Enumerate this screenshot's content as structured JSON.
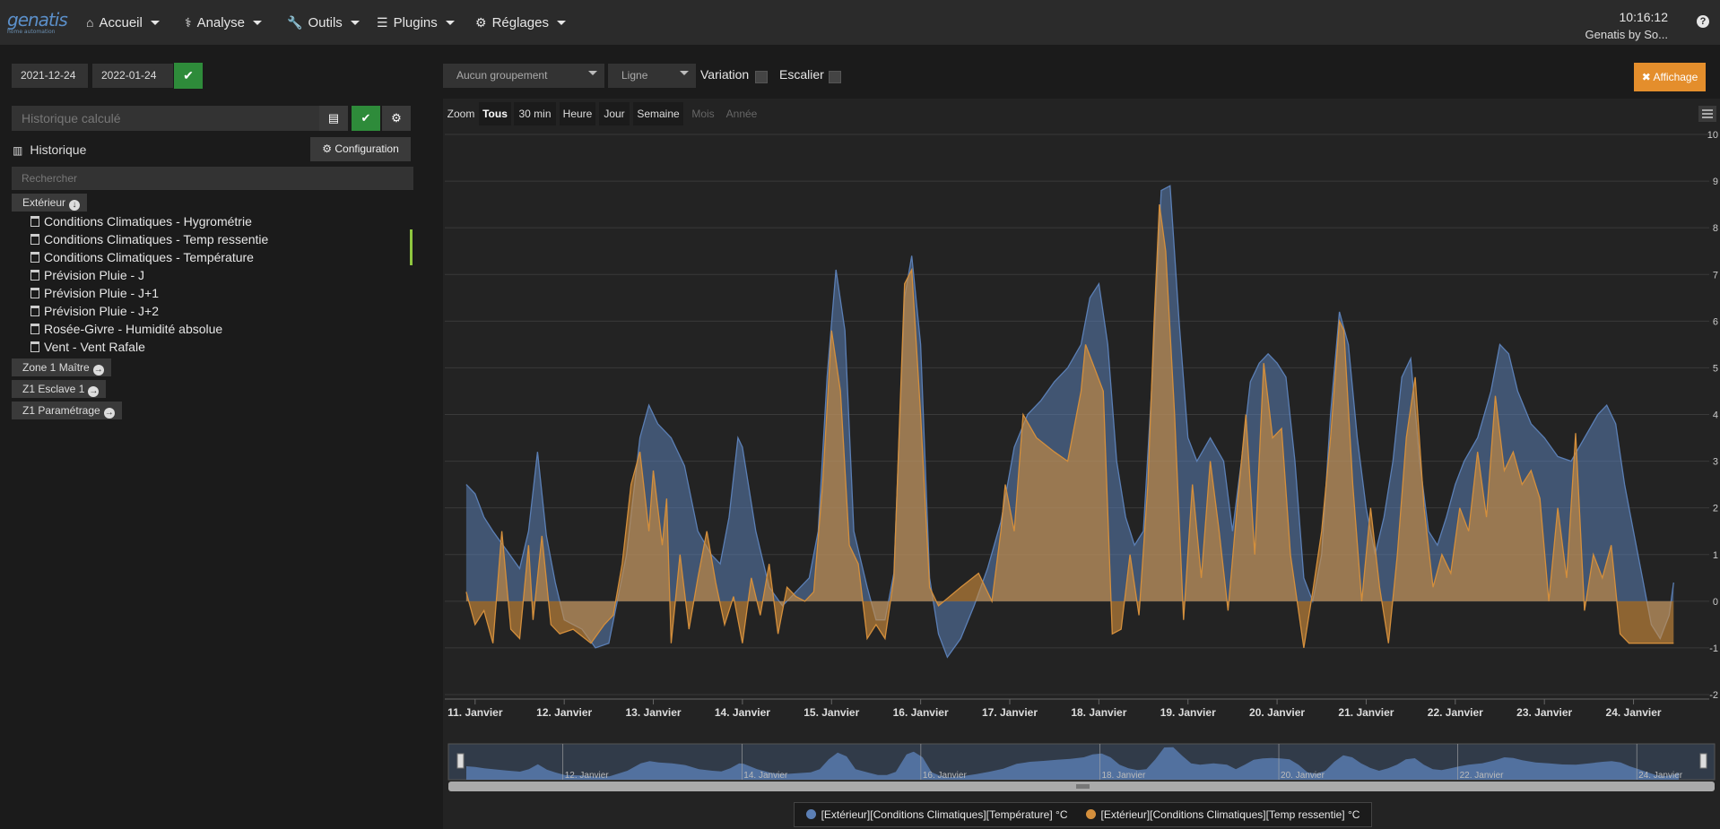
{
  "nav": {
    "logo": "genatis",
    "logo_sub": "home automation",
    "items": [
      {
        "label": "Accueil",
        "icon": "home-icon"
      },
      {
        "label": "Analyse",
        "icon": "stethoscope-icon"
      },
      {
        "label": "Outils",
        "icon": "wrench-icon"
      },
      {
        "label": "Plugins",
        "icon": "list-icon"
      },
      {
        "label": "Réglages",
        "icon": "cog-icon"
      }
    ],
    "time": "10:16:12",
    "user": "Genatis by So..."
  },
  "filters": {
    "date_start": "2021-12-24",
    "date_end": "2022-01-24",
    "calc_placeholder": "Historique calculé",
    "history_title": "Historique",
    "config_label": "Configuration",
    "search_placeholder": "Rechercher"
  },
  "groups": [
    {
      "label": "Extérieur",
      "items": [
        "Conditions Climatiques - Hygrométrie",
        "Conditions Climatiques - Temp ressentie",
        "Conditions Climatiques - Température",
        "Prévision Pluie - J",
        "Prévision Pluie - J+1",
        "Prévision Pluie - J+2",
        "Rosée-Givre - Humidité absolue",
        "Vent - Vent Rafale"
      ]
    },
    {
      "label": "Zone 1 Maître"
    },
    {
      "label": "Z1 Esclave 1"
    },
    {
      "label": "Z1 Paramétrage"
    }
  ],
  "toolbar": {
    "grouping": "Aucun groupement",
    "type": "Ligne",
    "variation_label": "Variation",
    "stair_label": "Escalier",
    "display_label": "Affichage"
  },
  "zoom": {
    "label": "Zoom",
    "buttons": [
      "Tous",
      "30 min",
      "Heure",
      "Jour",
      "Semaine",
      "Mois",
      "Année"
    ],
    "selected": "Tous",
    "disabled": [
      "Mois",
      "Année"
    ]
  },
  "chart_data": {
    "type": "area",
    "x_labels": [
      "11. Janvier",
      "12. Janvier",
      "13. Janvier",
      "14. Janvier",
      "15. Janvier",
      "16. Janvier",
      "17. Janvier",
      "18. Janvier",
      "19. Janvier",
      "20. Janvier",
      "21. Janvier",
      "22. Janvier",
      "23. Janvier",
      "24. Janvier"
    ],
    "x_range": [
      10.7,
      24.85
    ],
    "y_ticks": [
      10,
      9,
      8,
      7,
      6,
      5,
      4,
      3,
      2,
      1,
      0,
      -1,
      -2
    ],
    "ylim": [
      -2,
      10
    ],
    "navigator_labels": [
      "12. Janvier",
      "14. Janvier",
      "16. Janvier",
      "18. Janvier",
      "20. Janvier",
      "22. Janvier",
      "24. Janvier"
    ],
    "series": [
      {
        "name": "[Extérieur][Conditions Climatiques][Température] °C",
        "color": "#5b7fb5",
        "points": [
          [
            10.9,
            2.5
          ],
          [
            11.0,
            2.3
          ],
          [
            11.1,
            1.8
          ],
          [
            11.2,
            1.5
          ],
          [
            11.35,
            1.1
          ],
          [
            11.5,
            0.7
          ],
          [
            11.6,
            1.5
          ],
          [
            11.7,
            3.2
          ],
          [
            11.8,
            1.4
          ],
          [
            11.9,
            0.4
          ],
          [
            12.0,
            -0.4
          ],
          [
            12.2,
            -0.6
          ],
          [
            12.35,
            -1.0
          ],
          [
            12.5,
            -0.9
          ],
          [
            12.7,
            1.0
          ],
          [
            12.85,
            3.5
          ],
          [
            12.95,
            4.2
          ],
          [
            13.05,
            3.8
          ],
          [
            13.2,
            3.5
          ],
          [
            13.35,
            2.9
          ],
          [
            13.5,
            1.5
          ],
          [
            13.65,
            1.0
          ],
          [
            13.75,
            0.8
          ],
          [
            13.85,
            1.8
          ],
          [
            13.95,
            3.5
          ],
          [
            14.0,
            3.3
          ],
          [
            14.15,
            1.5
          ],
          [
            14.3,
            0.3
          ],
          [
            14.45,
            -0.1
          ],
          [
            14.6,
            0.2
          ],
          [
            14.75,
            0.5
          ],
          [
            14.85,
            1.5
          ],
          [
            14.95,
            4.8
          ],
          [
            15.05,
            7.1
          ],
          [
            15.15,
            5.8
          ],
          [
            15.25,
            1.5
          ],
          [
            15.4,
            0.3
          ],
          [
            15.5,
            -0.4
          ],
          [
            15.6,
            -0.4
          ],
          [
            15.7,
            0.6
          ],
          [
            15.82,
            6.5
          ],
          [
            15.9,
            7.4
          ],
          [
            16.0,
            5.5
          ],
          [
            16.1,
            0.5
          ],
          [
            16.2,
            -0.7
          ],
          [
            16.3,
            -1.2
          ],
          [
            16.45,
            -0.8
          ],
          [
            16.6,
            -0.1
          ],
          [
            16.75,
            0.7
          ],
          [
            16.9,
            1.7
          ],
          [
            17.05,
            3.3
          ],
          [
            17.2,
            4.0
          ],
          [
            17.35,
            4.3
          ],
          [
            17.5,
            4.7
          ],
          [
            17.65,
            5.0
          ],
          [
            17.8,
            5.5
          ],
          [
            17.9,
            6.5
          ],
          [
            18.0,
            6.8
          ],
          [
            18.1,
            5.5
          ],
          [
            18.2,
            3.0
          ],
          [
            18.3,
            1.8
          ],
          [
            18.4,
            1.2
          ],
          [
            18.5,
            1.5
          ],
          [
            18.6,
            4.8
          ],
          [
            18.7,
            8.8
          ],
          [
            18.8,
            8.9
          ],
          [
            18.9,
            6.0
          ],
          [
            19.0,
            3.5
          ],
          [
            19.1,
            3.0
          ],
          [
            19.25,
            3.5
          ],
          [
            19.4,
            3.0
          ],
          [
            19.5,
            1.5
          ],
          [
            19.6,
            3.0
          ],
          [
            19.7,
            4.7
          ],
          [
            19.8,
            5.1
          ],
          [
            19.9,
            5.3
          ],
          [
            20.0,
            5.1
          ],
          [
            20.1,
            4.8
          ],
          [
            20.2,
            3.0
          ],
          [
            20.3,
            0.5
          ],
          [
            20.4,
            0.0
          ],
          [
            20.5,
            1.0
          ],
          [
            20.6,
            4.0
          ],
          [
            20.7,
            6.2
          ],
          [
            20.8,
            5.5
          ],
          [
            20.9,
            3.5
          ],
          [
            21.0,
            2.0
          ],
          [
            21.1,
            1.0
          ],
          [
            21.2,
            1.8
          ],
          [
            21.3,
            3.0
          ],
          [
            21.4,
            4.8
          ],
          [
            21.5,
            5.2
          ],
          [
            21.6,
            3.0
          ],
          [
            21.7,
            1.5
          ],
          [
            21.8,
            1.2
          ],
          [
            21.9,
            1.8
          ],
          [
            22.0,
            2.5
          ],
          [
            22.1,
            3.0
          ],
          [
            22.25,
            3.5
          ],
          [
            22.4,
            4.5
          ],
          [
            22.5,
            5.5
          ],
          [
            22.6,
            5.3
          ],
          [
            22.7,
            4.5
          ],
          [
            22.85,
            3.8
          ],
          [
            23.0,
            3.5
          ],
          [
            23.15,
            3.1
          ],
          [
            23.3,
            3.0
          ],
          [
            23.45,
            3.5
          ],
          [
            23.6,
            4.0
          ],
          [
            23.7,
            4.2
          ],
          [
            23.8,
            3.8
          ],
          [
            23.9,
            2.5
          ],
          [
            24.0,
            1.5
          ],
          [
            24.1,
            0.5
          ],
          [
            24.2,
            -0.5
          ],
          [
            24.3,
            -0.8
          ],
          [
            24.4,
            -0.3
          ],
          [
            24.45,
            0.4
          ]
        ]
      },
      {
        "name": "[Extérieur][Conditions Climatiques][Temp ressentie] °C",
        "color": "#d48f3c",
        "points": [
          [
            10.9,
            0.2
          ],
          [
            11.0,
            -0.5
          ],
          [
            11.1,
            -0.2
          ],
          [
            11.2,
            -0.9
          ],
          [
            11.3,
            1.5
          ],
          [
            11.4,
            -0.6
          ],
          [
            11.5,
            -0.8
          ],
          [
            11.6,
            1.2
          ],
          [
            11.65,
            -0.4
          ],
          [
            11.75,
            1.4
          ],
          [
            11.85,
            -0.5
          ],
          [
            11.95,
            -0.7
          ],
          [
            12.1,
            -0.6
          ],
          [
            12.3,
            -0.9
          ],
          [
            12.45,
            -0.5
          ],
          [
            12.55,
            -0.3
          ],
          [
            12.65,
            0.8
          ],
          [
            12.75,
            2.5
          ],
          [
            12.85,
            3.2
          ],
          [
            12.95,
            1.5
          ],
          [
            13.0,
            2.8
          ],
          [
            13.1,
            1.2
          ],
          [
            13.15,
            2.2
          ],
          [
            13.2,
            -0.9
          ],
          [
            13.3,
            1.0
          ],
          [
            13.4,
            -0.6
          ],
          [
            13.5,
            0.5
          ],
          [
            13.6,
            1.5
          ],
          [
            13.7,
            0.4
          ],
          [
            13.8,
            -0.5
          ],
          [
            13.9,
            0.1
          ],
          [
            14.0,
            -0.9
          ],
          [
            14.1,
            0.5
          ],
          [
            14.2,
            -0.3
          ],
          [
            14.3,
            0.8
          ],
          [
            14.4,
            -0.7
          ],
          [
            14.5,
            0.3
          ],
          [
            14.6,
            0.1
          ],
          [
            14.7,
            0.0
          ],
          [
            14.8,
            0.2
          ],
          [
            14.9,
            2.5
          ],
          [
            15.0,
            5.8
          ],
          [
            15.1,
            4.5
          ],
          [
            15.2,
            1.2
          ],
          [
            15.3,
            0.8
          ],
          [
            15.4,
            -0.8
          ],
          [
            15.5,
            -0.5
          ],
          [
            15.6,
            -0.8
          ],
          [
            15.7,
            0.5
          ],
          [
            15.82,
            6.8
          ],
          [
            15.9,
            7.1
          ],
          [
            16.0,
            4.0
          ],
          [
            16.1,
            0.3
          ],
          [
            16.2,
            -0.1
          ],
          [
            16.45,
            0.3
          ],
          [
            16.65,
            0.6
          ],
          [
            16.8,
            0.0
          ],
          [
            16.9,
            1.5
          ],
          [
            16.95,
            2.5
          ],
          [
            17.05,
            1.5
          ],
          [
            17.15,
            4.0
          ],
          [
            17.3,
            3.5
          ],
          [
            17.5,
            3.2
          ],
          [
            17.65,
            3.0
          ],
          [
            17.8,
            4.5
          ],
          [
            17.85,
            5.5
          ],
          [
            17.95,
            5.0
          ],
          [
            18.05,
            4.5
          ],
          [
            18.15,
            -0.7
          ],
          [
            18.25,
            -0.6
          ],
          [
            18.35,
            1.0
          ],
          [
            18.45,
            -0.3
          ],
          [
            18.55,
            2.5
          ],
          [
            18.62,
            6.0
          ],
          [
            18.68,
            8.5
          ],
          [
            18.75,
            7.5
          ],
          [
            18.85,
            4.0
          ],
          [
            18.95,
            -0.4
          ],
          [
            19.05,
            2.5
          ],
          [
            19.15,
            0.5
          ],
          [
            19.25,
            3.0
          ],
          [
            19.35,
            1.5
          ],
          [
            19.45,
            -0.2
          ],
          [
            19.55,
            2.0
          ],
          [
            19.65,
            4.0
          ],
          [
            19.75,
            1.0
          ],
          [
            19.85,
            5.1
          ],
          [
            19.95,
            3.5
          ],
          [
            20.05,
            3.7
          ],
          [
            20.15,
            1.0
          ],
          [
            20.3,
            -1.0
          ],
          [
            20.4,
            0.2
          ],
          [
            20.5,
            1.5
          ],
          [
            20.6,
            3.5
          ],
          [
            20.7,
            6.0
          ],
          [
            20.75,
            5.8
          ],
          [
            20.85,
            2.5
          ],
          [
            20.95,
            0.0
          ],
          [
            21.05,
            2.0
          ],
          [
            21.15,
            0.3
          ],
          [
            21.25,
            -0.9
          ],
          [
            21.35,
            1.0
          ],
          [
            21.45,
            3.5
          ],
          [
            21.55,
            4.8
          ],
          [
            21.65,
            2.0
          ],
          [
            21.75,
            0.3
          ],
          [
            21.85,
            1.0
          ],
          [
            21.95,
            0.6
          ],
          [
            22.05,
            2.0
          ],
          [
            22.15,
            1.5
          ],
          [
            22.25,
            3.2
          ],
          [
            22.35,
            1.8
          ],
          [
            22.45,
            4.4
          ],
          [
            22.55,
            2.8
          ],
          [
            22.65,
            3.2
          ],
          [
            22.75,
            2.5
          ],
          [
            22.85,
            2.8
          ],
          [
            22.95,
            2.2
          ],
          [
            23.05,
            0.0
          ],
          [
            23.15,
            2.0
          ],
          [
            23.25,
            0.5
          ],
          [
            23.35,
            3.6
          ],
          [
            23.45,
            -0.2
          ],
          [
            23.55,
            1.0
          ],
          [
            23.65,
            0.5
          ],
          [
            23.75,
            1.2
          ],
          [
            23.85,
            -0.7
          ],
          [
            23.95,
            -0.9
          ],
          [
            24.1,
            -0.9
          ],
          [
            24.3,
            -0.9
          ],
          [
            24.45,
            -0.9
          ]
        ]
      }
    ]
  }
}
